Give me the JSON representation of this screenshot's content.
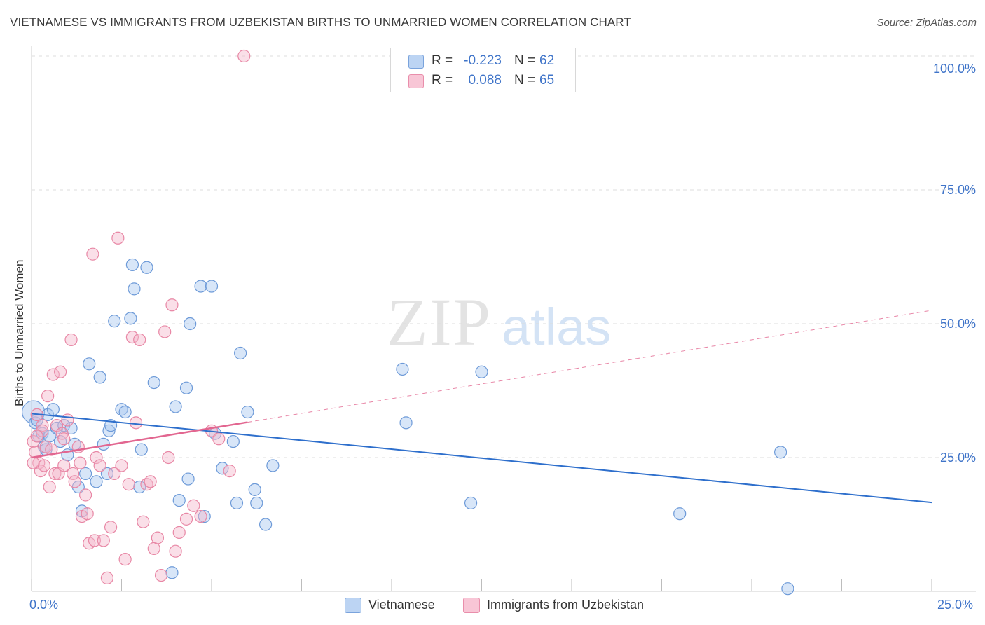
{
  "title": "VIETNAMESE VS IMMIGRANTS FROM UZBEKISTAN BIRTHS TO UNMARRIED WOMEN CORRELATION CHART",
  "source": "Source: ZipAtlas.com",
  "watermark": {
    "zip": "ZIP",
    "atlas": "atlas"
  },
  "colors": {
    "blue_fill": "#a9c8ef",
    "blue_stroke": "#6d9ad8",
    "blue_line": "#2e6fcc",
    "pink_fill": "#f5b8cb",
    "pink_stroke": "#e887a5",
    "pink_line": "#e26690",
    "tick_text": "#3f74c9",
    "grid": "#dcdcdc"
  },
  "legend": {
    "r_label": "R =",
    "n_label": "N =",
    "rows": [
      {
        "name": "Vietnamese",
        "r": "-0.223",
        "n": "62"
      },
      {
        "name": "Immigrants from Uzbekistan",
        "r": "0.088",
        "n": "65"
      }
    ]
  },
  "chart_data": {
    "type": "scatter",
    "title": "VIETNAMESE VS IMMIGRANTS FROM UZBEKISTAN BIRTHS TO UNMARRIED WOMEN CORRELATION CHART",
    "xlabel": "",
    "ylabel": "Births to Unmarried Women",
    "xlim": [
      0,
      25
    ],
    "ylim": [
      0,
      100
    ],
    "x_tick_labels": [
      "0.0%",
      "25.0%"
    ],
    "y_ticks": [
      25,
      50,
      75,
      100
    ],
    "y_tick_labels": [
      "25.0%",
      "50.0%",
      "75.0%",
      "100.0%"
    ],
    "grid": true,
    "legend_position": "top-center",
    "series": [
      {
        "name": "Vietnamese",
        "color": "#a9c8ef",
        "trend": {
          "x0": 0,
          "y0": 33.2,
          "x1": 25,
          "y1": 16.6,
          "dashed_from": null
        },
        "points": [
          [
            0.05,
            33.5
          ],
          [
            0.1,
            31.5
          ],
          [
            0.15,
            32
          ],
          [
            0.2,
            29
          ],
          [
            0.3,
            29.5
          ],
          [
            0.35,
            27
          ],
          [
            0.4,
            26.5
          ],
          [
            0.45,
            33
          ],
          [
            0.5,
            29
          ],
          [
            0.6,
            34
          ],
          [
            0.7,
            30.5
          ],
          [
            0.8,
            28
          ],
          [
            0.9,
            31
          ],
          [
            1.0,
            25.5
          ],
          [
            1.1,
            30.5
          ],
          [
            1.2,
            27.5
          ],
          [
            1.3,
            19.5
          ],
          [
            1.4,
            15
          ],
          [
            1.5,
            22
          ],
          [
            1.6,
            42.5
          ],
          [
            1.8,
            20.5
          ],
          [
            1.9,
            40
          ],
          [
            2.0,
            27.5
          ],
          [
            2.1,
            22
          ],
          [
            2.15,
            30
          ],
          [
            2.2,
            31
          ],
          [
            2.3,
            50.5
          ],
          [
            2.5,
            34
          ],
          [
            2.6,
            33.5
          ],
          [
            2.75,
            51
          ],
          [
            2.8,
            61
          ],
          [
            2.85,
            56.5
          ],
          [
            3.0,
            19.5
          ],
          [
            3.05,
            26.5
          ],
          [
            3.2,
            60.5
          ],
          [
            3.4,
            39
          ],
          [
            3.9,
            3.5
          ],
          [
            4.0,
            34.5
          ],
          [
            4.1,
            17
          ],
          [
            4.3,
            38
          ],
          [
            4.35,
            21
          ],
          [
            4.4,
            50
          ],
          [
            4.7,
            57
          ],
          [
            4.8,
            14
          ],
          [
            5.0,
            57
          ],
          [
            5.1,
            29.5
          ],
          [
            5.3,
            23
          ],
          [
            5.6,
            28
          ],
          [
            5.7,
            16.5
          ],
          [
            5.8,
            44.5
          ],
          [
            6.0,
            33.5
          ],
          [
            6.2,
            19
          ],
          [
            6.25,
            16.5
          ],
          [
            6.5,
            12.5
          ],
          [
            6.7,
            23.5
          ],
          [
            10.3,
            41.5
          ],
          [
            10.4,
            31.5
          ],
          [
            12.2,
            16.5
          ],
          [
            12.5,
            41
          ],
          [
            18.0,
            14.5
          ],
          [
            20.8,
            26
          ],
          [
            21.0,
            0.5
          ]
        ]
      },
      {
        "name": "Immigrants from Uzbekistan",
        "color": "#f5b8cb",
        "trend": {
          "x0": 0,
          "y0": 25,
          "x1": 25,
          "y1": 52.5,
          "dashed_from": 6.0
        },
        "points": [
          [
            0.05,
            28
          ],
          [
            0.1,
            26
          ],
          [
            0.15,
            33
          ],
          [
            0.2,
            24
          ],
          [
            0.25,
            22.5
          ],
          [
            0.3,
            31
          ],
          [
            0.35,
            23.5
          ],
          [
            0.4,
            27
          ],
          [
            0.45,
            36.5
          ],
          [
            0.5,
            19.5
          ],
          [
            0.55,
            26.5
          ],
          [
            0.6,
            40.5
          ],
          [
            0.65,
            22
          ],
          [
            0.7,
            31
          ],
          [
            0.75,
            22
          ],
          [
            0.8,
            41
          ],
          [
            0.85,
            29.5
          ],
          [
            0.9,
            23.5
          ],
          [
            1.0,
            32
          ],
          [
            1.1,
            47
          ],
          [
            1.15,
            22
          ],
          [
            1.2,
            20.5
          ],
          [
            1.3,
            27
          ],
          [
            1.35,
            24
          ],
          [
            1.4,
            14
          ],
          [
            1.5,
            18
          ],
          [
            1.55,
            14.5
          ],
          [
            1.6,
            9
          ],
          [
            1.7,
            63
          ],
          [
            1.75,
            9.5
          ],
          [
            1.8,
            25
          ],
          [
            1.9,
            23.5
          ],
          [
            2.0,
            9.5
          ],
          [
            2.1,
            2.5
          ],
          [
            2.2,
            12
          ],
          [
            2.3,
            22
          ],
          [
            2.4,
            66
          ],
          [
            2.5,
            23.5
          ],
          [
            2.6,
            6
          ],
          [
            2.7,
            20
          ],
          [
            2.8,
            47.5
          ],
          [
            2.9,
            31.5
          ],
          [
            3.0,
            47
          ],
          [
            3.1,
            13
          ],
          [
            3.2,
            20
          ],
          [
            3.3,
            20.5
          ],
          [
            3.4,
            8
          ],
          [
            3.5,
            10
          ],
          [
            3.6,
            3
          ],
          [
            3.7,
            48.5
          ],
          [
            3.8,
            25
          ],
          [
            3.9,
            53.5
          ],
          [
            4.0,
            7.5
          ],
          [
            4.1,
            11
          ],
          [
            4.3,
            13.5
          ],
          [
            4.5,
            16
          ],
          [
            4.7,
            14
          ],
          [
            5.0,
            30
          ],
          [
            5.2,
            28.5
          ],
          [
            5.5,
            22.5
          ],
          [
            5.9,
            100
          ],
          [
            0.05,
            24
          ],
          [
            0.3,
            30
          ],
          [
            0.9,
            28.5
          ],
          [
            0.15,
            29
          ]
        ]
      }
    ]
  }
}
